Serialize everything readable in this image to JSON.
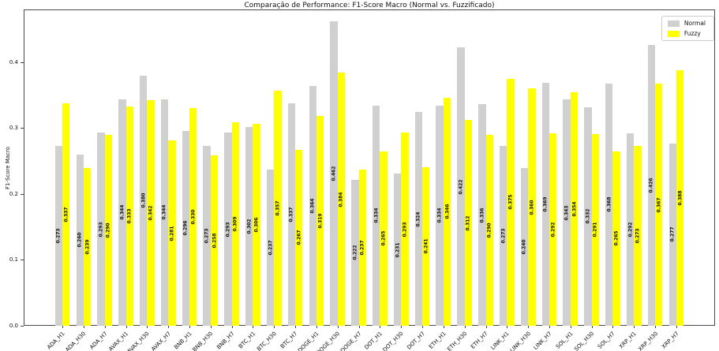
{
  "chart_data": {
    "type": "bar",
    "title": "Comparação de Performance: F1-Score Macro (Normal vs. Fuzzificado)",
    "xlabel": "",
    "ylabel": "F1-Score Macro",
    "ylim": [
      0,
      0.48
    ],
    "yticks": [
      0.0,
      0.1,
      0.2,
      0.3,
      0.4
    ],
    "grid": false,
    "legend_position": "upper right",
    "bar_value_labels": true,
    "value_label_format": "3-decimals",
    "categories": [
      "ADA_H1",
      "ADA_H30",
      "ADA_H7",
      "AVAX_H1",
      "AVAX_H30",
      "AVAX_H7",
      "BNB_H1",
      "BNB_H30",
      "BNB_H7",
      "BTC_H1",
      "BTC_H30",
      "BTC_H7",
      "DOGE_H1",
      "DOGE_H30",
      "DOGE_H7",
      "DOT_H1",
      "DOT_H30",
      "DOT_H7",
      "ETH_H1",
      "ETH_H30",
      "ETH_H7",
      "LINK_H1",
      "LINK_H30",
      "LINK_H7",
      "SOL_H1",
      "SOL_H30",
      "SOL_H7",
      "XRP_H1",
      "XRP_H30",
      "XRP_H7"
    ],
    "series": [
      {
        "name": "Normal",
        "color": "#d0d0d0",
        "values": [
          0.273,
          0.26,
          0.293,
          0.344,
          0.38,
          0.344,
          0.296,
          0.273,
          0.293,
          0.302,
          0.237,
          0.337,
          0.364,
          0.462,
          0.222,
          0.334,
          0.231,
          0.324,
          0.334,
          0.422,
          0.336,
          0.273,
          0.24,
          0.369,
          0.343,
          0.332,
          0.368,
          0.292,
          0.426,
          0.277
        ]
      },
      {
        "name": "Fuzzy",
        "color": "#ffff00",
        "values": [
          0.337,
          0.239,
          0.29,
          0.333,
          0.342,
          0.281,
          0.33,
          0.258,
          0.309,
          0.306,
          0.357,
          0.267,
          0.319,
          0.384,
          0.237,
          0.265,
          0.293,
          0.241,
          0.346,
          0.312,
          0.29,
          0.375,
          0.36,
          0.292,
          0.354,
          0.291,
          0.265,
          0.273,
          0.367,
          0.388
        ]
      }
    ]
  }
}
